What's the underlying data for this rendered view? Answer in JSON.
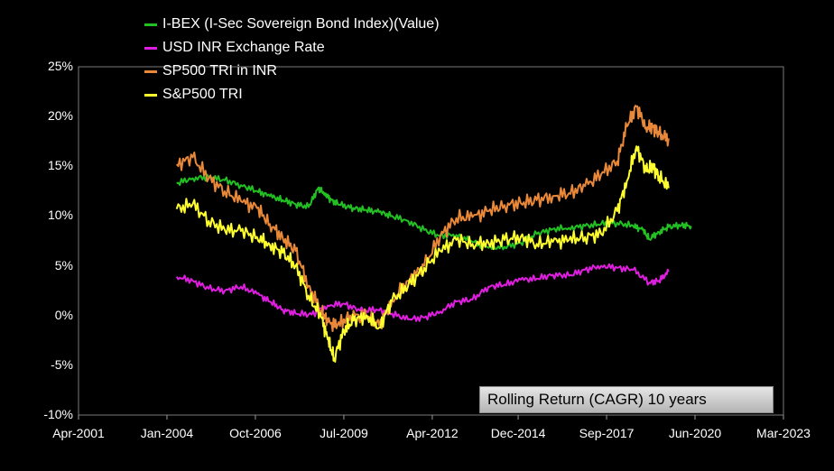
{
  "chart_data": {
    "type": "line",
    "title": "",
    "annotation": "Rolling Return (CAGR) 10 years",
    "xlabel": "",
    "ylabel": "",
    "ylim": [
      -10,
      25
    ],
    "y_ticks": [
      "25%",
      "20%",
      "15%",
      "10%",
      "5%",
      "0%",
      "-5%",
      "-10%"
    ],
    "y_tick_values": [
      25,
      20,
      15,
      10,
      5,
      0,
      -5,
      -10
    ],
    "x_ticks": [
      "Apr-2001",
      "Jan-2004",
      "Oct-2006",
      "Jul-2009",
      "Apr-2012",
      "Dec-2014",
      "Sep-2017",
      "Jun-2020",
      "Mar-2023"
    ],
    "x_tick_values": [
      2001.25,
      2004.0,
      2006.75,
      2009.5,
      2012.25,
      2014.92,
      2017.67,
      2020.42,
      2023.17
    ],
    "xlim": [
      2001.25,
      2023.17
    ],
    "series": [
      {
        "name": "I-BEX (I-Sec Sovereign Bond Index)(Value)",
        "color": "#22c022",
        "x": [
          2004.3,
          2004.8,
          2005.3,
          2005.8,
          2006.3,
          2006.8,
          2007.2,
          2007.6,
          2008.0,
          2008.4,
          2008.7,
          2008.9,
          2009.1,
          2009.4,
          2009.8,
          2010.2,
          2010.6,
          2011.0,
          2011.5,
          2012.0,
          2012.5,
          2013.0,
          2013.5,
          2014.0,
          2014.5,
          2015.0,
          2015.5,
          2016.0,
          2016.5,
          2017.0,
          2017.5,
          2018.0,
          2018.5,
          2018.8,
          2019.0,
          2019.3,
          2019.6,
          2020.0,
          2020.3
        ],
        "values": [
          13.3,
          13.8,
          13.9,
          13.6,
          13.1,
          12.5,
          12.0,
          11.6,
          11.2,
          10.9,
          12.8,
          12.3,
          11.6,
          11.1,
          10.8,
          10.6,
          10.4,
          10.0,
          9.5,
          8.6,
          8.0,
          8.1,
          7.4,
          6.8,
          6.9,
          7.3,
          8.2,
          8.7,
          8.8,
          9.0,
          9.2,
          9.3,
          9.0,
          8.6,
          7.7,
          8.4,
          8.9,
          9.1,
          9.0
        ]
      },
      {
        "name": "USD INR Exchange Rate",
        "color": "#e01ee0",
        "x": [
          2004.3,
          2004.8,
          2005.3,
          2005.8,
          2006.3,
          2006.8,
          2007.2,
          2007.6,
          2008.0,
          2008.5,
          2009.0,
          2009.5,
          2010.0,
          2010.5,
          2011.0,
          2011.5,
          2012.0,
          2012.5,
          2013.0,
          2013.5,
          2014.0,
          2014.5,
          2015.0,
          2015.5,
          2016.0,
          2016.5,
          2017.0,
          2017.5,
          2018.0,
          2018.5,
          2019.0,
          2019.3,
          2019.6
        ],
        "values": [
          3.9,
          3.5,
          2.7,
          2.5,
          2.9,
          2.2,
          1.4,
          0.6,
          0.2,
          0.1,
          1.0,
          1.2,
          0.5,
          0.6,
          0.2,
          -0.4,
          -0.2,
          0.4,
          1.4,
          1.6,
          2.9,
          3.1,
          3.6,
          3.7,
          4.1,
          4.0,
          4.6,
          5.0,
          4.8,
          4.6,
          3.3,
          3.5,
          4.4
        ]
      },
      {
        "name": "SP500 TRI in INR",
        "color": "#e88838",
        "x": [
          2004.3,
          2004.8,
          2005.3,
          2005.8,
          2006.3,
          2006.8,
          2007.2,
          2007.6,
          2008.0,
          2008.4,
          2008.8,
          2009.0,
          2009.3,
          2009.7,
          2010.2,
          2010.6,
          2011.0,
          2011.5,
          2012.0,
          2012.5,
          2013.0,
          2013.5,
          2014.0,
          2014.5,
          2015.0,
          2015.5,
          2016.0,
          2016.5,
          2017.0,
          2017.5,
          2018.0,
          2018.3,
          2018.6,
          2018.9,
          2019.1,
          2019.3,
          2019.6
        ],
        "values": [
          15.2,
          15.9,
          13.8,
          12.5,
          11.5,
          10.8,
          9.2,
          7.8,
          6.5,
          3.0,
          0.5,
          -0.7,
          -1.0,
          0.0,
          0.0,
          -1.0,
          1.5,
          3.5,
          5.0,
          8.0,
          9.8,
          9.9,
          10.5,
          11.1,
          11.3,
          11.6,
          12.0,
          12.3,
          13.0,
          14.2,
          15.5,
          19.0,
          21.0,
          18.9,
          19.0,
          18.2,
          17.8
        ]
      },
      {
        "name": "S&P500 TRI",
        "color": "#ffff30",
        "x": [
          2004.3,
          2004.8,
          2005.3,
          2005.8,
          2006.3,
          2006.8,
          2007.2,
          2007.6,
          2008.0,
          2008.4,
          2008.8,
          2009.0,
          2009.2,
          2009.5,
          2009.8,
          2010.2,
          2010.6,
          2011.0,
          2011.5,
          2012.0,
          2012.5,
          2013.0,
          2013.5,
          2014.0,
          2014.5,
          2015.0,
          2015.5,
          2016.0,
          2016.5,
          2017.0,
          2017.5,
          2018.0,
          2018.3,
          2018.6,
          2018.9,
          2019.1,
          2019.3,
          2019.6
        ],
        "values": [
          10.7,
          11.2,
          9.5,
          8.6,
          8.5,
          7.9,
          7.1,
          6.3,
          5.0,
          2.0,
          -0.2,
          -2.4,
          -4.3,
          -1.5,
          -0.5,
          0.0,
          -1.2,
          1.5,
          3.0,
          4.8,
          6.5,
          7.6,
          7.2,
          7.3,
          7.6,
          7.9,
          7.2,
          7.4,
          7.6,
          7.9,
          8.2,
          10.5,
          13.5,
          17.0,
          14.5,
          15.0,
          14.0,
          12.8
        ]
      }
    ]
  }
}
